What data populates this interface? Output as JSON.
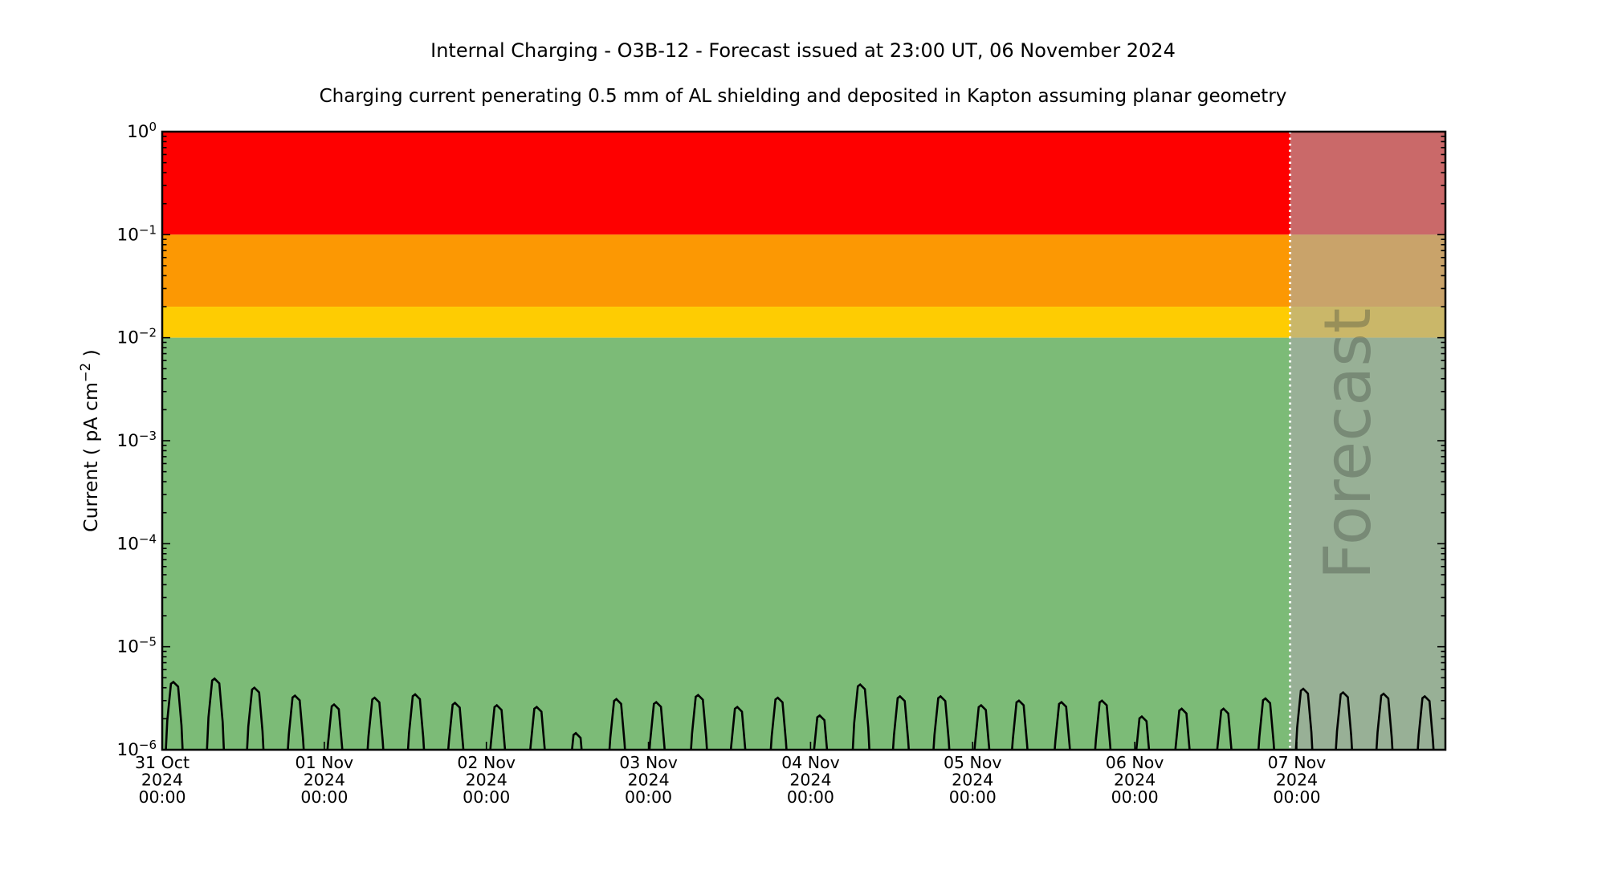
{
  "figure": {
    "background": "#FFFFFF"
  },
  "chart_data": {
    "type": "line",
    "title": "Internal Charging - O3B-12 - Forecast issued at 23:00 UT, 06 November 2024",
    "subtitle": "Charging current penerating 0.5 mm of AL shielding and deposited in Kapton assuming planar geometry",
    "ylabel": "Current ( pA cm⁻² )",
    "xlabel": "",
    "yscale": "log",
    "ylim": [
      1e-06,
      1.0
    ],
    "y_tick_exponents": [
      0,
      -1,
      -2,
      -3,
      -4,
      -5,
      -6
    ],
    "xlim_hours": [
      0,
      190
    ],
    "x_major_ticks": [
      {
        "hours": 0,
        "lines": [
          "31 Oct",
          "2024",
          "00:00"
        ]
      },
      {
        "hours": 24,
        "lines": [
          "01 Nov",
          "2024",
          "00:00"
        ]
      },
      {
        "hours": 48,
        "lines": [
          "02 Nov",
          "2024",
          "00:00"
        ]
      },
      {
        "hours": 72,
        "lines": [
          "03 Nov",
          "2024",
          "00:00"
        ]
      },
      {
        "hours": 96,
        "lines": [
          "04 Nov",
          "2024",
          "00:00"
        ]
      },
      {
        "hours": 120,
        "lines": [
          "05 Nov",
          "2024",
          "00:00"
        ]
      },
      {
        "hours": 144,
        "lines": [
          "06 Nov",
          "2024",
          "00:00"
        ]
      },
      {
        "hours": 168,
        "lines": [
          "07 Nov",
          "2024",
          "00:00"
        ]
      }
    ],
    "threshold_bands": [
      {
        "name": "alert-red",
        "from": 0.1,
        "to": 1.0,
        "color": "#FE0000"
      },
      {
        "name": "warning-orange",
        "from": 0.02,
        "to": 0.1,
        "color": "#FC9803"
      },
      {
        "name": "caution-yellow",
        "from": 0.01,
        "to": 0.02,
        "color": "#FECC02"
      },
      {
        "name": "nominal-green",
        "from": 1e-06,
        "to": 0.01,
        "color": "#7CBB77"
      }
    ],
    "forecast": {
      "start_hours": 167,
      "label": "Forecast",
      "overlay_color": "rgba(169,169,169,0.62)",
      "divider_color": "#FFFFFF",
      "label_color": "#3C443C"
    },
    "legend": "none",
    "grid": "off",
    "series": [
      {
        "name": "charging-current",
        "color": "#000000",
        "spike_peaks": [
          {
            "t": 1.8,
            "v": 4.55e-06
          },
          {
            "t": 7.9,
            "v": 4.9e-06
          },
          {
            "t": 13.8,
            "v": 4e-06
          },
          {
            "t": 19.8,
            "v": 3.35e-06
          },
          {
            "t": 25.6,
            "v": 2.75e-06
          },
          {
            "t": 31.6,
            "v": 3.2e-06
          },
          {
            "t": 37.6,
            "v": 3.45e-06
          },
          {
            "t": 43.5,
            "v": 2.85e-06
          },
          {
            "t": 49.7,
            "v": 2.7e-06
          },
          {
            "t": 55.6,
            "v": 2.6e-06
          },
          {
            "t": 61.4,
            "v": 1.45e-06
          },
          {
            "t": 67.4,
            "v": 3.1e-06
          },
          {
            "t": 73.3,
            "v": 2.9e-06
          },
          {
            "t": 79.5,
            "v": 3.4e-06
          },
          {
            "t": 85.3,
            "v": 2.6e-06
          },
          {
            "t": 91.3,
            "v": 3.2e-06
          },
          {
            "t": 97.5,
            "v": 2.15e-06
          },
          {
            "t": 103.5,
            "v": 4.3e-06
          },
          {
            "t": 109.4,
            "v": 3.3e-06
          },
          {
            "t": 115.4,
            "v": 3.3e-06
          },
          {
            "t": 121.4,
            "v": 2.7e-06
          },
          {
            "t": 127.0,
            "v": 3e-06
          },
          {
            "t": 133.3,
            "v": 2.9e-06
          },
          {
            "t": 139.3,
            "v": 3e-06
          },
          {
            "t": 145.2,
            "v": 2.1e-06
          },
          {
            "t": 151.1,
            "v": 2.5e-06
          },
          {
            "t": 157.3,
            "v": 2.5e-06
          },
          {
            "t": 163.5,
            "v": 3.15e-06
          },
          {
            "t": 169.1,
            "v": 3.9e-06
          },
          {
            "t": 175.0,
            "v": 3.6e-06
          },
          {
            "t": 181.0,
            "v": 3.5e-06
          },
          {
            "t": 187.1,
            "v": 3.3e-06
          }
        ]
      }
    ]
  }
}
